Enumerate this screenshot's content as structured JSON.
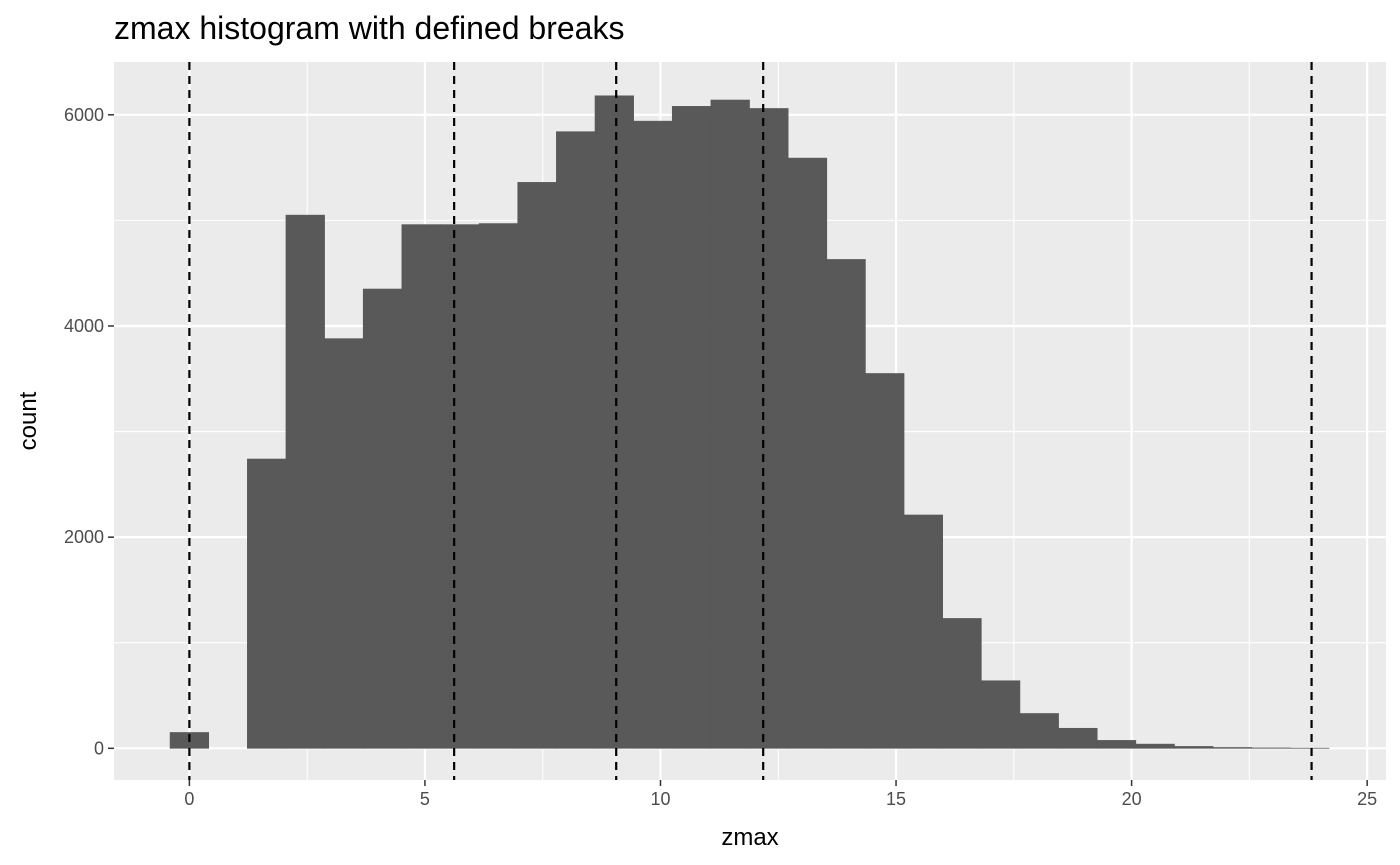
{
  "chart_data": {
    "type": "bar",
    "title": "zmax histogram with defined breaks",
    "xlabel": "zmax",
    "ylabel": "count",
    "xlim": [
      -1.6,
      25.4
    ],
    "ylim": [
      -300,
      6500
    ],
    "x_ticks": [
      0,
      5,
      10,
      15,
      20,
      25
    ],
    "y_ticks": [
      0,
      2000,
      4000,
      6000
    ],
    "bin_width": 0.82,
    "bins": [
      {
        "x": 0.0,
        "count": 150
      },
      {
        "x": 1.64,
        "count": 2740
      },
      {
        "x": 2.46,
        "count": 5050
      },
      {
        "x": 3.28,
        "count": 3880
      },
      {
        "x": 4.1,
        "count": 4350
      },
      {
        "x": 4.92,
        "count": 4960
      },
      {
        "x": 5.74,
        "count": 4960
      },
      {
        "x": 6.56,
        "count": 4970
      },
      {
        "x": 7.38,
        "count": 5360
      },
      {
        "x": 8.2,
        "count": 5840
      },
      {
        "x": 9.02,
        "count": 6180
      },
      {
        "x": 9.84,
        "count": 5940
      },
      {
        "x": 10.66,
        "count": 6080
      },
      {
        "x": 11.48,
        "count": 6140
      },
      {
        "x": 12.3,
        "count": 6060
      },
      {
        "x": 13.12,
        "count": 5590
      },
      {
        "x": 13.94,
        "count": 4630
      },
      {
        "x": 14.76,
        "count": 3550
      },
      {
        "x": 15.58,
        "count": 2210
      },
      {
        "x": 16.4,
        "count": 1230
      },
      {
        "x": 17.22,
        "count": 640
      },
      {
        "x": 18.04,
        "count": 330
      },
      {
        "x": 18.86,
        "count": 190
      },
      {
        "x": 19.68,
        "count": 75
      },
      {
        "x": 20.5,
        "count": 40
      },
      {
        "x": 21.32,
        "count": 18
      },
      {
        "x": 22.14,
        "count": 8
      },
      {
        "x": 22.96,
        "count": 4
      },
      {
        "x": 23.78,
        "count": 2
      }
    ],
    "vlines": [
      0.0,
      5.62,
      9.06,
      12.18,
      23.82
    ],
    "colors": {
      "panel_background": "#ebebeb",
      "grid": "#ffffff",
      "bar_fill": "#595959",
      "vline": "#000000"
    },
    "grid": true,
    "legend": "none"
  }
}
